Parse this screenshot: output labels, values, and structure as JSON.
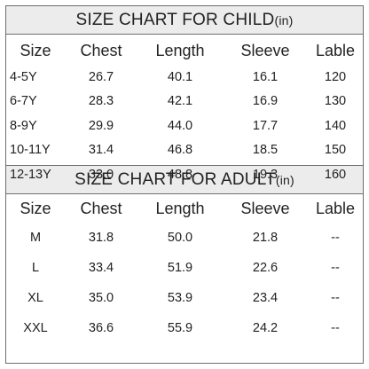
{
  "child": {
    "title": "SIZE CHART FOR CHILD",
    "unit": "(in)",
    "headers": [
      "Size",
      "Chest",
      "Length",
      "Sleeve",
      "Lable"
    ],
    "rows": [
      [
        "4-5Y",
        "26.7",
        "40.1",
        "16.1",
        "120"
      ],
      [
        "6-7Y",
        "28.3",
        "42.1",
        "16.9",
        "130"
      ],
      [
        "8-9Y",
        "29.9",
        "44.0",
        "17.7",
        "140"
      ],
      [
        "10-11Y",
        "31.4",
        "46.8",
        "18.5",
        "150"
      ],
      [
        "12-13Y",
        "33.0",
        "48.8",
        "19.3",
        "160"
      ]
    ]
  },
  "adult": {
    "title": "SIZE CHART FOR ADULT",
    "unit": "(in)",
    "headers": [
      "Size",
      "Chest",
      "Length",
      "Sleeve",
      "Lable"
    ],
    "rows": [
      [
        "M",
        "31.8",
        "50.0",
        "21.8",
        "--"
      ],
      [
        "L",
        "33.4",
        "51.9",
        "22.6",
        "--"
      ],
      [
        "XL",
        "35.0",
        "53.9",
        "23.4",
        "--"
      ],
      [
        "XXL",
        "36.6",
        "55.9",
        "24.2",
        "--"
      ]
    ]
  }
}
